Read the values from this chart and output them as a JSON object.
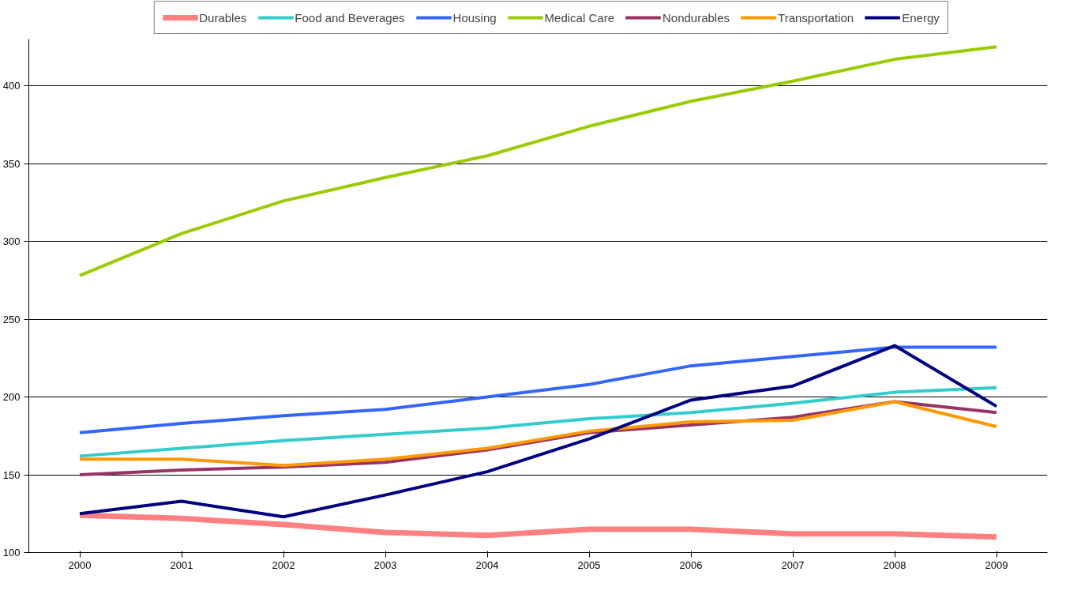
{
  "chart_data": {
    "type": "line",
    "categories": [
      "2000",
      "2001",
      "2002",
      "2003",
      "2004",
      "2005",
      "2006",
      "2007",
      "2008",
      "2009"
    ],
    "series": [
      {
        "name": "Durables",
        "color": "#ff8080",
        "values": [
          124,
          122,
          118,
          113,
          111,
          115,
          115,
          112,
          112,
          110
        ]
      },
      {
        "name": "Food and Beverages",
        "color": "#33cccc",
        "values": [
          162,
          167,
          172,
          176,
          180,
          186,
          190,
          196,
          203,
          206
        ]
      },
      {
        "name": "Housing",
        "color": "#3366ff",
        "values": [
          177,
          183,
          188,
          192,
          200,
          208,
          220,
          226,
          232,
          232
        ]
      },
      {
        "name": "Medical Care",
        "color": "#99cc00",
        "values": [
          278,
          305,
          326,
          341,
          355,
          374,
          390,
          403,
          417,
          425
        ]
      },
      {
        "name": "Nondurables",
        "color": "#993366",
        "values": [
          150,
          153,
          155,
          158,
          166,
          177,
          182,
          187,
          197,
          190
        ]
      },
      {
        "name": "Transportation",
        "color": "#ff9900",
        "values": [
          160,
          160,
          156,
          160,
          167,
          178,
          184,
          185,
          197,
          181
        ]
      },
      {
        "name": "Energy",
        "color": "#000080",
        "values": [
          125,
          133,
          123,
          137,
          152,
          173,
          198,
          207,
          233,
          194
        ]
      }
    ],
    "ylim": [
      100,
      430
    ],
    "yticks": [
      100,
      150,
      200,
      250,
      300,
      350,
      400
    ],
    "grid": "y",
    "legend": "top",
    "marker": "none",
    "line_style": "solid"
  }
}
